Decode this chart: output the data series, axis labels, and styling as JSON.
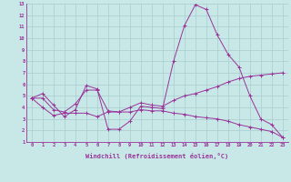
{
  "xlabel": "Windchill (Refroidissement éolien,°C)",
  "bg_color": "#c8e8e8",
  "line_color": "#993399",
  "grid_color": "#a8cccc",
  "xlim": [
    -0.5,
    23.5
  ],
  "ylim": [
    1,
    13
  ],
  "xticks": [
    0,
    1,
    2,
    3,
    4,
    5,
    6,
    7,
    8,
    9,
    10,
    11,
    12,
    13,
    14,
    15,
    16,
    17,
    18,
    19,
    20,
    21,
    22,
    23
  ],
  "yticks": [
    1,
    2,
    3,
    4,
    5,
    6,
    7,
    8,
    9,
    10,
    11,
    12,
    13
  ],
  "series": [
    [
      4.8,
      5.2,
      4.2,
      3.2,
      3.8,
      5.9,
      5.6,
      2.1,
      2.1,
      2.8,
      4.1,
      4.0,
      3.9,
      8.0,
      11.1,
      12.9,
      12.5,
      10.3,
      8.6,
      7.5,
      5.0,
      3.0,
      2.5,
      1.4
    ],
    [
      4.8,
      4.8,
      3.8,
      3.6,
      4.3,
      5.5,
      5.5,
      3.7,
      3.6,
      4.0,
      4.4,
      4.2,
      4.1,
      4.6,
      5.0,
      5.2,
      5.5,
      5.8,
      6.2,
      6.5,
      6.7,
      6.8,
      6.9,
      7.0
    ],
    [
      4.8,
      4.0,
      3.3,
      3.5,
      3.5,
      3.5,
      3.2,
      3.6,
      3.6,
      3.6,
      3.8,
      3.7,
      3.7,
      3.5,
      3.4,
      3.2,
      3.1,
      3.0,
      2.8,
      2.5,
      2.3,
      2.1,
      1.9,
      1.4
    ]
  ]
}
